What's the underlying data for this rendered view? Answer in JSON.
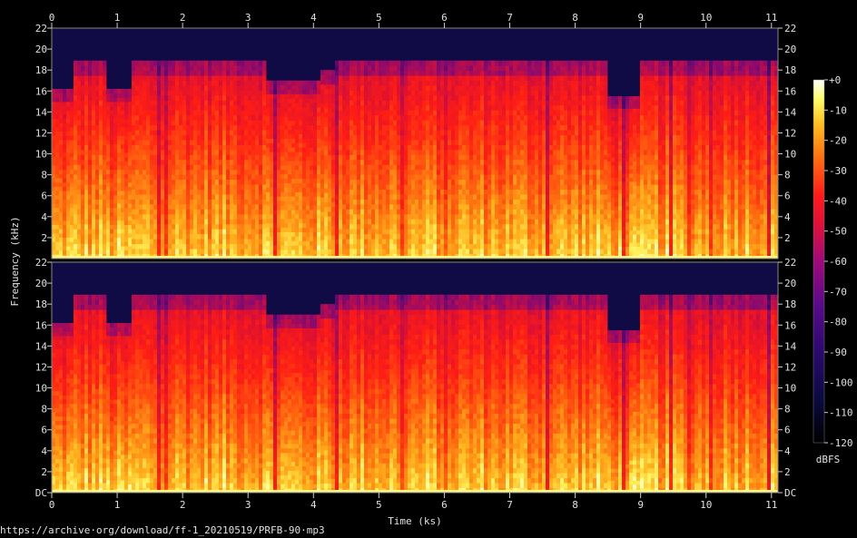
{
  "chart_data": {
    "type": "heatmap",
    "xlabel": "Time (ks)",
    "ylabel": "Frequency (kHz)",
    "colorbar_label": "dBFS",
    "x_ticks": [
      "0",
      "1",
      "2",
      "3",
      "4",
      "5",
      "6",
      "7",
      "8",
      "9",
      "10",
      "11"
    ],
    "y_ticks_top": [
      "22",
      "20",
      "18",
      "16",
      "14",
      "12",
      "10",
      "8",
      "6",
      "4",
      "2"
    ],
    "y_ticks_bottom": [
      "22",
      "20",
      "18",
      "16",
      "14",
      "12",
      "10",
      "8",
      "6",
      "4",
      "2",
      "DC"
    ],
    "colorbar_ticks": [
      "+0",
      "-10",
      "-20",
      "-30",
      "-40",
      "-50",
      "-60",
      "-70",
      "-80",
      "-90",
      "-100",
      "-110",
      "-120"
    ],
    "xlim": [
      0,
      11.1
    ],
    "ylim_khz": [
      0,
      22
    ],
    "colorbar_range_dbfs": [
      -120,
      0
    ],
    "channels": 2,
    "colors": {
      "background": "#000000",
      "floor": "#0b0a40",
      "accent": "#ff1a1a",
      "peak": "#ffffb0"
    },
    "cutoff_segments_ks_khz": [
      {
        "start": 0.0,
        "end": 0.35,
        "cutoff": 16.2
      },
      {
        "start": 0.35,
        "end": 0.86,
        "cutoff": 18.9
      },
      {
        "start": 0.86,
        "end": 1.22,
        "cutoff": 16.2
      },
      {
        "start": 1.22,
        "end": 3.27,
        "cutoff": 18.9
      },
      {
        "start": 3.27,
        "end": 4.1,
        "cutoff": 17.0
      },
      {
        "start": 4.1,
        "end": 4.35,
        "cutoff": 18.0
      },
      {
        "start": 4.35,
        "end": 8.5,
        "cutoff": 18.9
      },
      {
        "start": 8.5,
        "end": 9.0,
        "cutoff": 15.5
      },
      {
        "start": 9.0,
        "end": 11.1,
        "cutoff": 18.9
      }
    ]
  },
  "source_url": "https://archive·org/download/ff-1_20210519/PRFB-90·mp3"
}
